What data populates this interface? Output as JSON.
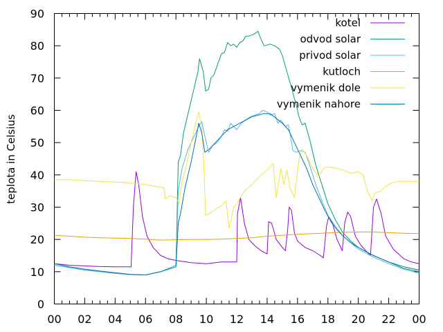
{
  "chart_data": {
    "type": "line",
    "title": "",
    "xlabel": "",
    "ylabel": "teplota in Celsius",
    "xlim": [
      0,
      24
    ],
    "ylim": [
      0,
      90
    ],
    "xticks": [
      "00",
      "02",
      "04",
      "06",
      "08",
      "10",
      "12",
      "14",
      "16",
      "18",
      "20",
      "22",
      "00"
    ],
    "yticks": [
      0,
      10,
      20,
      30,
      40,
      50,
      60,
      70,
      80,
      90
    ],
    "grid": false,
    "legend_position": "top-right",
    "series": [
      {
        "name": "kotel",
        "color": "#9400d3",
        "points": [
          [
            0,
            12.5
          ],
          [
            1,
            12
          ],
          [
            2,
            11.8
          ],
          [
            3,
            11.6
          ],
          [
            4,
            11.5
          ],
          [
            5.05,
            11.5
          ],
          [
            5.2,
            30
          ],
          [
            5.38,
            41
          ],
          [
            5.55,
            37
          ],
          [
            5.8,
            27
          ],
          [
            6.1,
            21
          ],
          [
            6.5,
            17.5
          ],
          [
            7,
            15
          ],
          [
            7.5,
            14
          ],
          [
            8,
            13.5
          ],
          [
            9,
            12.8
          ],
          [
            10,
            12.5
          ],
          [
            11,
            13
          ],
          [
            12,
            13
          ],
          [
            12.05,
            28
          ],
          [
            12.25,
            33
          ],
          [
            12.5,
            25
          ],
          [
            12.8,
            20
          ],
          [
            13.2,
            18
          ],
          [
            13.6,
            16.5
          ],
          [
            14,
            15.5
          ],
          [
            14.1,
            25.5
          ],
          [
            14.3,
            25
          ],
          [
            14.6,
            20
          ],
          [
            15,
            17.5
          ],
          [
            15.2,
            16.5
          ],
          [
            15.35,
            23
          ],
          [
            15.45,
            30
          ],
          [
            15.6,
            29
          ],
          [
            15.8,
            22
          ],
          [
            16,
            19.5
          ],
          [
            16.5,
            17.5
          ],
          [
            17,
            16.5
          ],
          [
            17.5,
            15
          ],
          [
            17.7,
            14.3
          ],
          [
            17.9,
            24
          ],
          [
            18.05,
            27
          ],
          [
            18.3,
            25
          ],
          [
            18.6,
            20
          ],
          [
            18.95,
            16.5
          ],
          [
            19.1,
            25
          ],
          [
            19.3,
            28.5
          ],
          [
            19.5,
            27
          ],
          [
            19.8,
            21
          ],
          [
            20.2,
            18
          ],
          [
            20.6,
            16
          ],
          [
            20.8,
            15
          ],
          [
            21,
            30
          ],
          [
            21.2,
            32.5
          ],
          [
            21.5,
            28
          ],
          [
            21.8,
            21
          ],
          [
            22.3,
            17
          ],
          [
            23,
            14
          ],
          [
            23.5,
            13
          ],
          [
            24,
            12.5
          ]
        ]
      },
      {
        "name": "odvod solar",
        "color": "#009e73",
        "points": [
          [
            0,
            12
          ],
          [
            1,
            11.3
          ],
          [
            2,
            10.5
          ],
          [
            3,
            10
          ],
          [
            4,
            9.5
          ],
          [
            5,
            9.1
          ],
          [
            6,
            9
          ],
          [
            7,
            10
          ],
          [
            8,
            12
          ],
          [
            8.15,
            44
          ],
          [
            8.3,
            46
          ],
          [
            8.5,
            53
          ],
          [
            9,
            63
          ],
          [
            9.45,
            72
          ],
          [
            9.55,
            76
          ],
          [
            9.8,
            72
          ],
          [
            9.95,
            66
          ],
          [
            10.15,
            66.5
          ],
          [
            10.3,
            70
          ],
          [
            10.5,
            71
          ],
          [
            10.8,
            75
          ],
          [
            11,
            77.5
          ],
          [
            11.2,
            78
          ],
          [
            11.4,
            81
          ],
          [
            11.6,
            80
          ],
          [
            11.8,
            80.5
          ],
          [
            12,
            79.5
          ],
          [
            12.2,
            81
          ],
          [
            12.4,
            81.5
          ],
          [
            12.6,
            83
          ],
          [
            12.8,
            83
          ],
          [
            13.1,
            83.5
          ],
          [
            13.4,
            84.5
          ],
          [
            13.6,
            82
          ],
          [
            13.8,
            80
          ],
          [
            14.2,
            80.5
          ],
          [
            14.5,
            80
          ],
          [
            14.8,
            79
          ],
          [
            15,
            77
          ],
          [
            15.3,
            72
          ],
          [
            15.6,
            67
          ],
          [
            15.9,
            62
          ],
          [
            16.1,
            58
          ],
          [
            16.3,
            55.5
          ],
          [
            16.5,
            56
          ],
          [
            16.8,
            51
          ],
          [
            17.2,
            43
          ],
          [
            17.6,
            37
          ],
          [
            18,
            31
          ],
          [
            18.5,
            26
          ],
          [
            19,
            22
          ],
          [
            19.5,
            19.5
          ],
          [
            20,
            17.5
          ],
          [
            21,
            15
          ],
          [
            22,
            13
          ],
          [
            23,
            11
          ],
          [
            24,
            10
          ]
        ]
      },
      {
        "name": "privod solar",
        "color": "#56b4e9",
        "points": [
          [
            0,
            12
          ],
          [
            1,
            11.3
          ],
          [
            2,
            10.5
          ],
          [
            3,
            10
          ],
          [
            4,
            9.5
          ],
          [
            5,
            9.1
          ],
          [
            6,
            9
          ],
          [
            7,
            10
          ],
          [
            8,
            12
          ],
          [
            8.15,
            35
          ],
          [
            8.4,
            42
          ],
          [
            8.8,
            48
          ],
          [
            9.2,
            52
          ],
          [
            9.5,
            55
          ],
          [
            9.7,
            56.5
          ],
          [
            9.9,
            52
          ],
          [
            10.15,
            47
          ],
          [
            10.4,
            49
          ],
          [
            10.7,
            50
          ],
          [
            11,
            52
          ],
          [
            11.2,
            54
          ],
          [
            11.4,
            53.5
          ],
          [
            11.6,
            56
          ],
          [
            11.8,
            55
          ],
          [
            12,
            54
          ],
          [
            12.3,
            56
          ],
          [
            12.6,
            57
          ],
          [
            12.9,
            58
          ],
          [
            13.2,
            58.5
          ],
          [
            13.5,
            59
          ],
          [
            13.7,
            60
          ],
          [
            14,
            59.5
          ],
          [
            14.2,
            58.5
          ],
          [
            14.5,
            59
          ],
          [
            14.7,
            56
          ],
          [
            14.9,
            57
          ],
          [
            15.2,
            55
          ],
          [
            15.4,
            55.5
          ],
          [
            15.5,
            53
          ],
          [
            15.7,
            47.5
          ],
          [
            15.9,
            47
          ],
          [
            16.2,
            47.5
          ],
          [
            16.5,
            47
          ],
          [
            16.8,
            43
          ],
          [
            17.2,
            37
          ],
          [
            17.6,
            32
          ],
          [
            18,
            27.5
          ],
          [
            18.5,
            24
          ],
          [
            19,
            21
          ],
          [
            19.5,
            19
          ],
          [
            20,
            17
          ],
          [
            21,
            14.5
          ],
          [
            22,
            12.5
          ],
          [
            23,
            10.8
          ],
          [
            24,
            9.5
          ]
        ]
      },
      {
        "name": "kutloch",
        "color": "#e69f00",
        "points": [
          [
            0,
            21.3
          ],
          [
            1,
            21
          ],
          [
            2,
            20.7
          ],
          [
            3,
            20.5
          ],
          [
            4,
            20.4
          ],
          [
            5,
            20.3
          ],
          [
            6,
            20.1
          ],
          [
            7,
            19.8
          ],
          [
            8,
            19.9
          ],
          [
            9,
            20
          ],
          [
            10,
            20
          ],
          [
            11,
            20.1
          ],
          [
            12,
            20.3
          ],
          [
            13,
            20.5
          ],
          [
            14,
            21
          ],
          [
            15,
            21.3
          ],
          [
            16,
            21.6
          ],
          [
            17,
            21.8
          ],
          [
            18,
            22
          ],
          [
            19,
            22.2
          ],
          [
            20,
            22.3
          ],
          [
            21,
            22.3
          ],
          [
            22,
            22.1
          ],
          [
            23,
            21.9
          ],
          [
            24,
            21.8
          ]
        ]
      },
      {
        "name": "vymenik dole",
        "color": "#f0e442",
        "points": [
          [
            0,
            38.5
          ],
          [
            1,
            38.5
          ],
          [
            2,
            38.2
          ],
          [
            3,
            38
          ],
          [
            4,
            37.8
          ],
          [
            5,
            37.5
          ],
          [
            6,
            37
          ],
          [
            6.6,
            36.5
          ],
          [
            7.2,
            36
          ],
          [
            7.3,
            32.5
          ],
          [
            7.6,
            33.5
          ],
          [
            8,
            33
          ],
          [
            8.2,
            31
          ],
          [
            8.4,
            38
          ],
          [
            8.7,
            43
          ],
          [
            9,
            50
          ],
          [
            9.3,
            56
          ],
          [
            9.5,
            59.5
          ],
          [
            9.7,
            55
          ],
          [
            9.82,
            45
          ],
          [
            9.95,
            27.5
          ],
          [
            10.2,
            28
          ],
          [
            10.5,
            29
          ],
          [
            10.8,
            30
          ],
          [
            11,
            30.5
          ],
          [
            11.3,
            32
          ],
          [
            11.5,
            23.5
          ],
          [
            11.8,
            30
          ],
          [
            12,
            31
          ],
          [
            12.5,
            35
          ],
          [
            13,
            37
          ],
          [
            13.5,
            39.5
          ],
          [
            14,
            41.5
          ],
          [
            14.4,
            43.5
          ],
          [
            14.6,
            33
          ],
          [
            14.9,
            42
          ],
          [
            15.1,
            37
          ],
          [
            15.3,
            41.5
          ],
          [
            15.5,
            36
          ],
          [
            15.8,
            33
          ],
          [
            16.1,
            45
          ],
          [
            16.3,
            48
          ],
          [
            16.6,
            46
          ],
          [
            17,
            42
          ],
          [
            17.4,
            39.5
          ],
          [
            17.7,
            42
          ],
          [
            18,
            42.5
          ],
          [
            18.6,
            42
          ],
          [
            19,
            41.5
          ],
          [
            19.5,
            40.5
          ],
          [
            20,
            41
          ],
          [
            20.3,
            40
          ],
          [
            20.6,
            35
          ],
          [
            20.9,
            32
          ],
          [
            21.1,
            34.5
          ],
          [
            21.5,
            35
          ],
          [
            21.8,
            36.5
          ],
          [
            22.2,
            37.5
          ],
          [
            22.6,
            38
          ],
          [
            23.2,
            38
          ],
          [
            24,
            38
          ]
        ]
      },
      {
        "name": "vymenik nahore",
        "color": "#0072b2",
        "points": [
          [
            0,
            12.5
          ],
          [
            1,
            11.5
          ],
          [
            2,
            10.8
          ],
          [
            3,
            10.2
          ],
          [
            4,
            9.7
          ],
          [
            5,
            9.2
          ],
          [
            6,
            9
          ],
          [
            7,
            10
          ],
          [
            8,
            11.5
          ],
          [
            8.15,
            25
          ],
          [
            8.3,
            28
          ],
          [
            8.6,
            36
          ],
          [
            9,
            44
          ],
          [
            9.3,
            51
          ],
          [
            9.5,
            56
          ],
          [
            9.7,
            53
          ],
          [
            9.9,
            47
          ],
          [
            10.2,
            48
          ],
          [
            10.6,
            50
          ],
          [
            11,
            52
          ],
          [
            11.4,
            54
          ],
          [
            11.8,
            55
          ],
          [
            12.2,
            56
          ],
          [
            12.6,
            57
          ],
          [
            13,
            58
          ],
          [
            13.4,
            58.5
          ],
          [
            13.8,
            59
          ],
          [
            14.2,
            59
          ],
          [
            14.6,
            57.5
          ],
          [
            15,
            56
          ],
          [
            15.4,
            54
          ],
          [
            15.8,
            50
          ],
          [
            16.2,
            46
          ],
          [
            16.6,
            42
          ],
          [
            17,
            37
          ],
          [
            17.4,
            33
          ],
          [
            17.8,
            29
          ],
          [
            18.2,
            25.5
          ],
          [
            18.6,
            23
          ],
          [
            19,
            21
          ],
          [
            19.5,
            19
          ],
          [
            20,
            17.5
          ],
          [
            21,
            15
          ],
          [
            22,
            13
          ],
          [
            23,
            11.5
          ],
          [
            24,
            10.5
          ]
        ]
      }
    ]
  }
}
